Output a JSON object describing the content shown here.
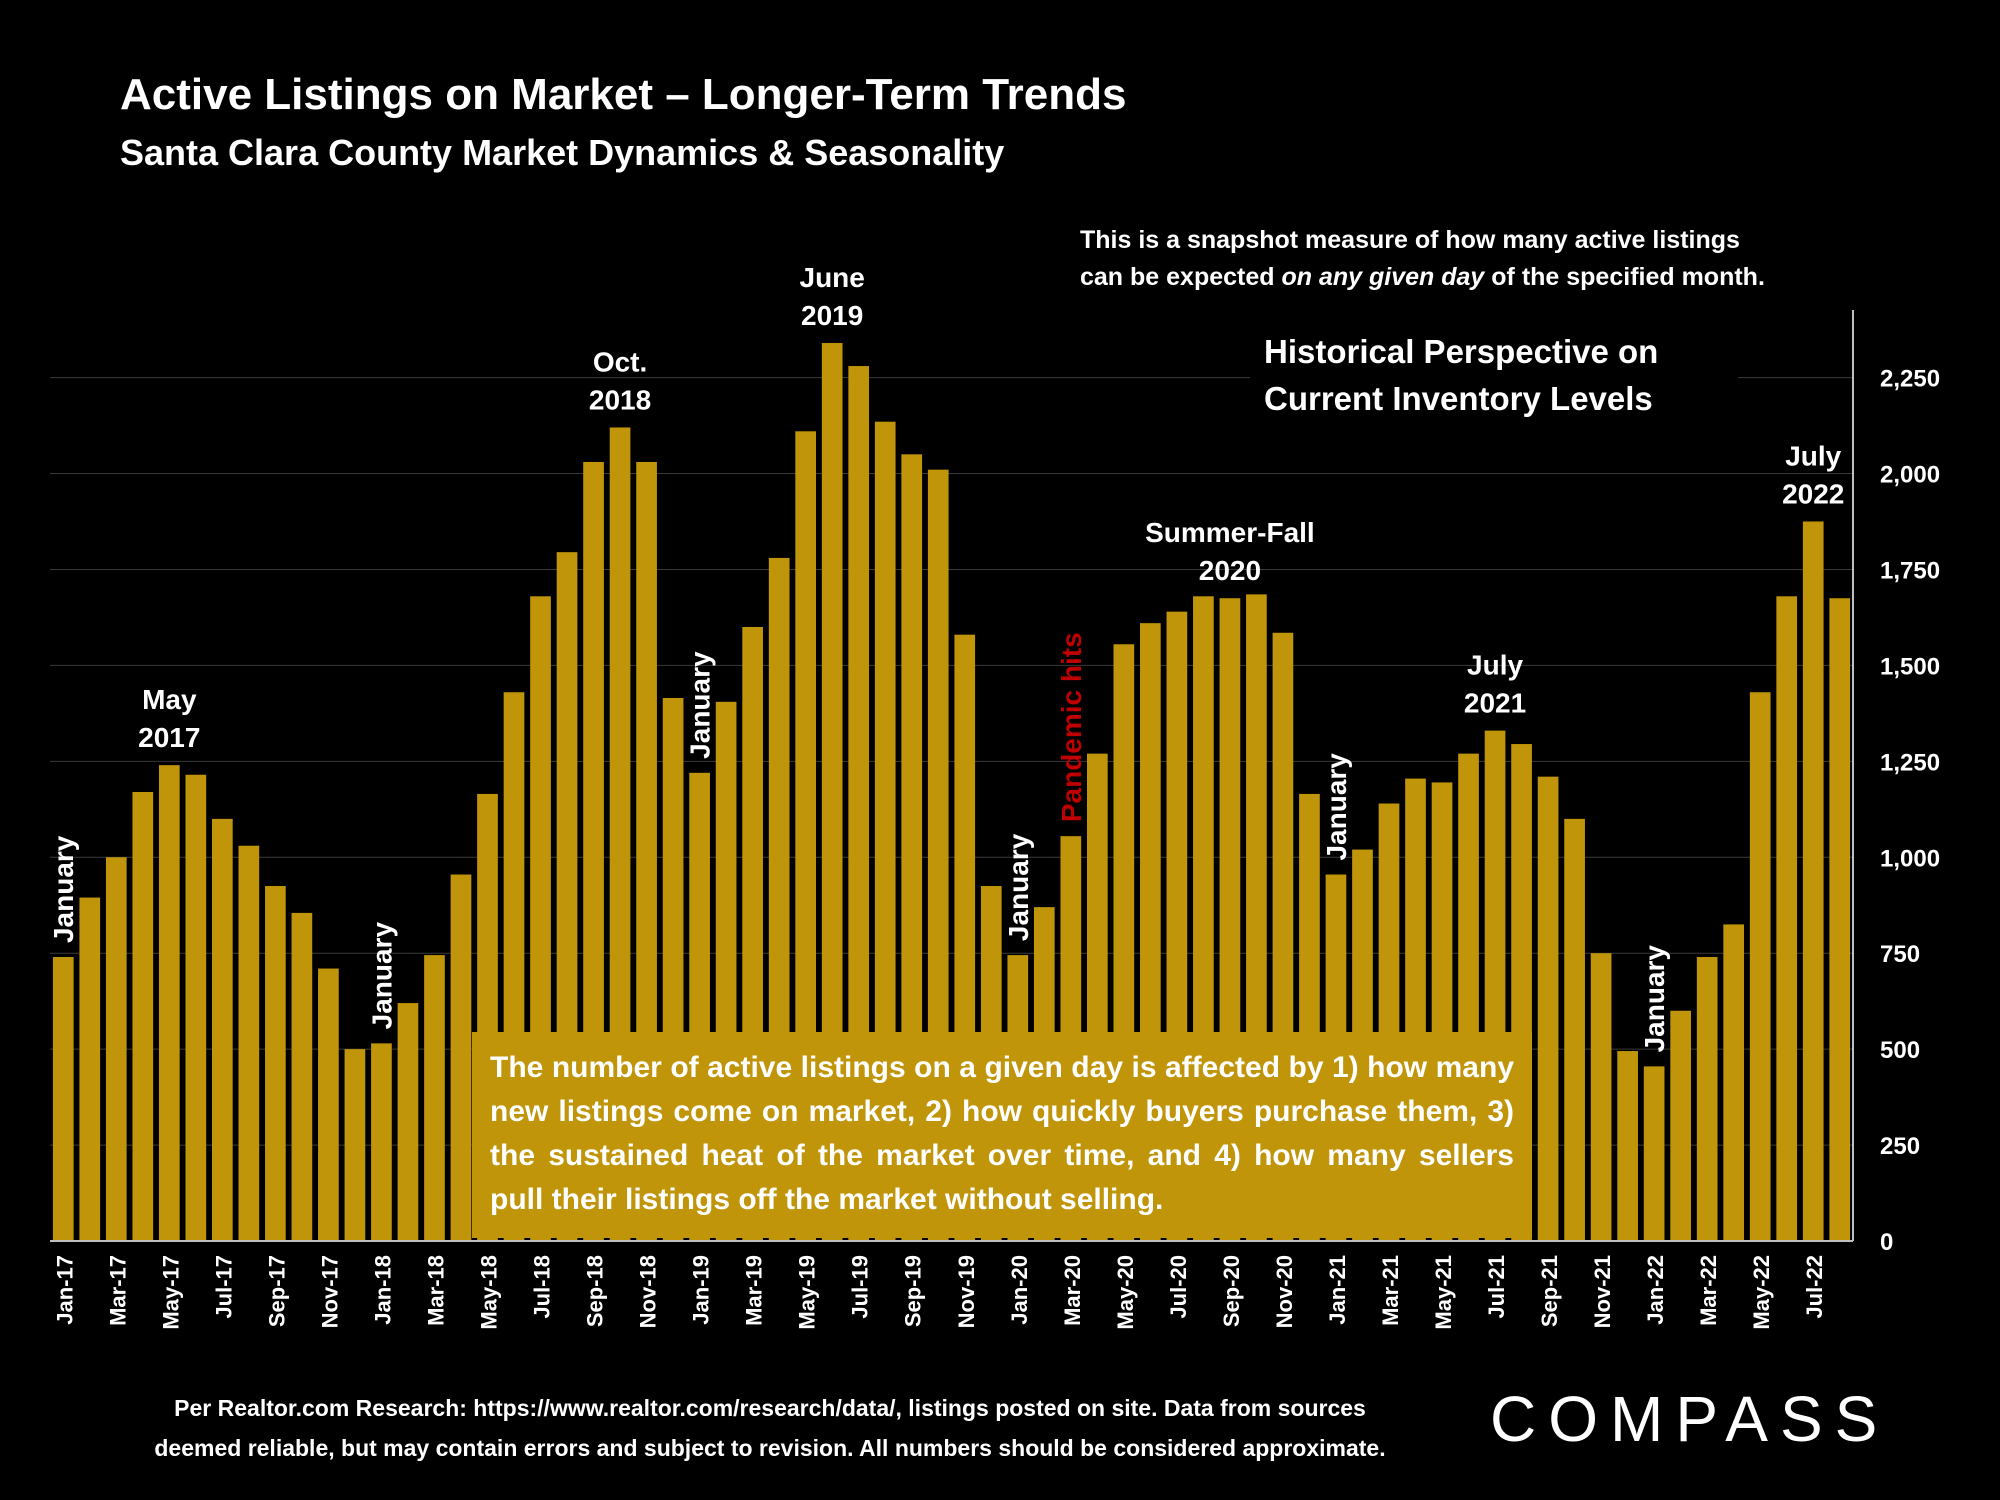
{
  "header": {
    "title": "Active Listings on Market – Longer-Term Trends",
    "subtitle": "Santa Clara County Market Dynamics & Seasonality"
  },
  "snapshot_note": {
    "line1": "This is a snapshot measure of how many active listings",
    "line2_pre": "can be expected ",
    "line2_em": "on any given day",
    "line2_post": " of the specified month."
  },
  "perspective": {
    "line1": "Historical Perspective on",
    "line2": "Current Inventory Levels"
  },
  "factors_note": "The number of active listings on a given day is affected by 1) how many new listings come on market, 2) how quickly buyers purchase them, 3) the sustained heat of the market over time, and 4) how many sellers pull their listings off the market without selling.",
  "footer": {
    "line1": "Per Realtor.com Research:  https://www.realtor.com/research/data/, listings posted on site. Data from sources",
    "line2": "deemed reliable, but may contain errors and subject to revision. All numbers should be considered approximate."
  },
  "logo": "COMPASS",
  "colors": {
    "bar": "#c09509",
    "background": "#000000",
    "pandemic_label": "#c00000",
    "gridline": "#3a3a3a"
  },
  "chart_data": {
    "type": "bar",
    "categories": [
      "Jan-17",
      "Feb-17",
      "Mar-17",
      "Apr-17",
      "May-17",
      "Jun-17",
      "Jul-17",
      "Aug-17",
      "Sep-17",
      "Oct-17",
      "Nov-17",
      "Dec-17",
      "Jan-18",
      "Feb-18",
      "Mar-18",
      "Apr-18",
      "May-18",
      "Jun-18",
      "Jul-18",
      "Aug-18",
      "Sep-18",
      "Oct-18",
      "Nov-18",
      "Dec-18",
      "Jan-19",
      "Feb-19",
      "Mar-19",
      "Apr-19",
      "May-19",
      "Jun-19",
      "Jul-19",
      "Aug-19",
      "Sep-19",
      "Oct-19",
      "Nov-19",
      "Dec-19",
      "Jan-20",
      "Feb-20",
      "Mar-20",
      "Apr-20",
      "May-20",
      "Jun-20",
      "Jul-20",
      "Aug-20",
      "Sep-20",
      "Oct-20",
      "Nov-20",
      "Dec-20",
      "Jan-21",
      "Feb-21",
      "Mar-21",
      "Apr-21",
      "May-21",
      "Jun-21",
      "Jul-21",
      "Aug-21",
      "Sep-21",
      "Oct-21",
      "Nov-21",
      "Dec-21",
      "Jan-22",
      "Feb-22",
      "Mar-22",
      "Apr-22",
      "May-22",
      "Jun-22",
      "Jul-22",
      "Aug-22"
    ],
    "tick_labels": [
      "Jan-17",
      "",
      "Mar-17",
      "",
      "May-17",
      "",
      "Jul-17",
      "",
      "Sep-17",
      "",
      "Nov-17",
      "",
      "Jan-18",
      "",
      "Mar-18",
      "",
      "May-18",
      "",
      "Jul-18",
      "",
      "Sep-18",
      "",
      "Nov-18",
      "",
      "Jan-19",
      "",
      "Mar-19",
      "",
      "May-19",
      "",
      "Jul-19",
      "",
      "Sep-19",
      "",
      "Nov-19",
      "",
      "Jan-20",
      "",
      "Mar-20",
      "",
      "May-20",
      "",
      "Jul-20",
      "",
      "Sep-20",
      "",
      "Nov-20",
      "",
      "Jan-21",
      "",
      "Mar-21",
      "",
      "May-21",
      "",
      "Jul-21",
      "",
      "Sep-21",
      "",
      "Nov-21",
      "",
      "Jan-22",
      "",
      "Mar-22",
      "",
      "May-22",
      "",
      "Jul-22",
      ""
    ],
    "values": [
      740,
      895,
      1000,
      1170,
      1240,
      1215,
      1100,
      1030,
      925,
      855,
      710,
      500,
      515,
      620,
      745,
      955,
      1165,
      1430,
      1680,
      1795,
      2030,
      2120,
      2030,
      1415,
      1220,
      1405,
      1600,
      1780,
      2110,
      2340,
      2280,
      2135,
      2050,
      2010,
      1580,
      925,
      745,
      870,
      1055,
      1270,
      1555,
      1610,
      1640,
      1680,
      1675,
      1685,
      1585,
      1165,
      955,
      1020,
      1140,
      1205,
      1195,
      1270,
      1330,
      1295,
      1210,
      1100,
      750,
      495,
      455,
      600,
      740,
      825,
      1430,
      1680,
      1875,
      1675
    ],
    "ylim": [
      0,
      2400
    ],
    "yticks": [
      0,
      250,
      500,
      750,
      1000,
      1250,
      1500,
      1750,
      2000,
      2250
    ],
    "ytick_labels": [
      "0",
      "250",
      "500",
      "750",
      "1,000",
      "1,250",
      "1,500",
      "1,750",
      "2,000",
      "2,250"
    ],
    "grid": true,
    "y_axis_side": "right",
    "annotations": [
      {
        "text": [
          "May",
          "2017"
        ],
        "index": 4,
        "style": "peak"
      },
      {
        "text": [
          "Oct.",
          "2018"
        ],
        "index": 21,
        "style": "peak"
      },
      {
        "text": [
          "June",
          "2019"
        ],
        "index": 29,
        "style": "peak"
      },
      {
        "text": [
          "Summer-Fall",
          "2020"
        ],
        "index": 44,
        "style": "peak"
      },
      {
        "text": [
          "July",
          "2021"
        ],
        "index": 54,
        "style": "peak"
      },
      {
        "text": [
          "July",
          "2022"
        ],
        "index": 66,
        "style": "peak"
      },
      {
        "text": [
          "January"
        ],
        "index": 0,
        "style": "vertical"
      },
      {
        "text": [
          "January"
        ],
        "index": 12,
        "style": "vertical"
      },
      {
        "text": [
          "January"
        ],
        "index": 24,
        "style": "vertical"
      },
      {
        "text": [
          "January"
        ],
        "index": 36,
        "style": "vertical"
      },
      {
        "text": [
          "January"
        ],
        "index": 48,
        "style": "vertical"
      },
      {
        "text": [
          "January"
        ],
        "index": 60,
        "style": "vertical"
      },
      {
        "text": [
          "Pandemic hits"
        ],
        "index": 38,
        "style": "vertical-red"
      }
    ]
  }
}
